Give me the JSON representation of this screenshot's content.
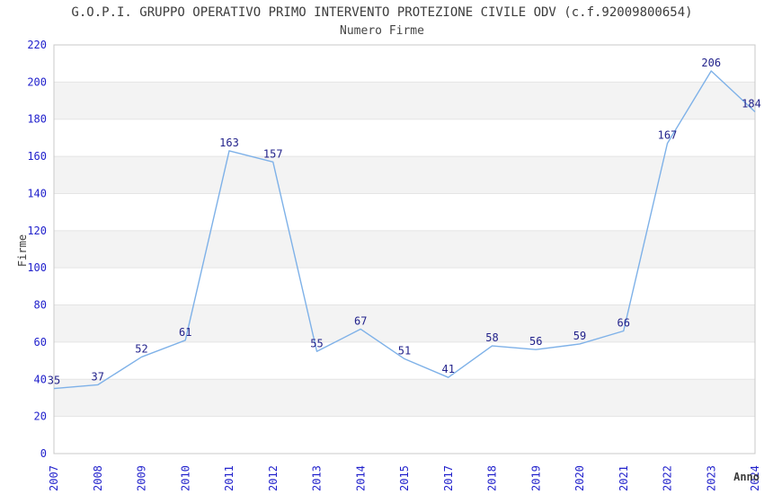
{
  "title": "G.O.P.I. GRUPPO OPERATIVO PRIMO INTERVENTO PROTEZIONE CIVILE ODV (c.f.92009800654)",
  "subtitle": "Numero Firme",
  "chart_data": {
    "type": "line",
    "title": "G.O.P.I. GRUPPO OPERATIVO PRIMO INTERVENTO PROTEZIONE CIVILE ODV (c.f.92009800654)",
    "subtitle": "Numero Firme",
    "xlabel": "Anno",
    "ylabel": "Firme",
    "categories": [
      "2007",
      "2008",
      "2009",
      "2010",
      "2011",
      "2012",
      "2013",
      "2014",
      "2015",
      "2017",
      "2018",
      "2019",
      "2020",
      "2021",
      "2022",
      "2023",
      "2024"
    ],
    "values": [
      35,
      37,
      52,
      61,
      163,
      157,
      55,
      67,
      51,
      41,
      58,
      56,
      59,
      66,
      167,
      206,
      184
    ],
    "ylim": [
      0,
      220
    ],
    "ytick_step": 20,
    "grid": true,
    "legend": "none",
    "data_labels": true,
    "colors": {
      "line": "#7eb1e8",
      "tick_label": "#2222cc",
      "data_label": "#22228b",
      "band": "#f3f3f3",
      "gridline": "#e4e4e4",
      "border": "#c8c8c8",
      "text": "#3c3c3c",
      "background": "#ffffff"
    }
  }
}
